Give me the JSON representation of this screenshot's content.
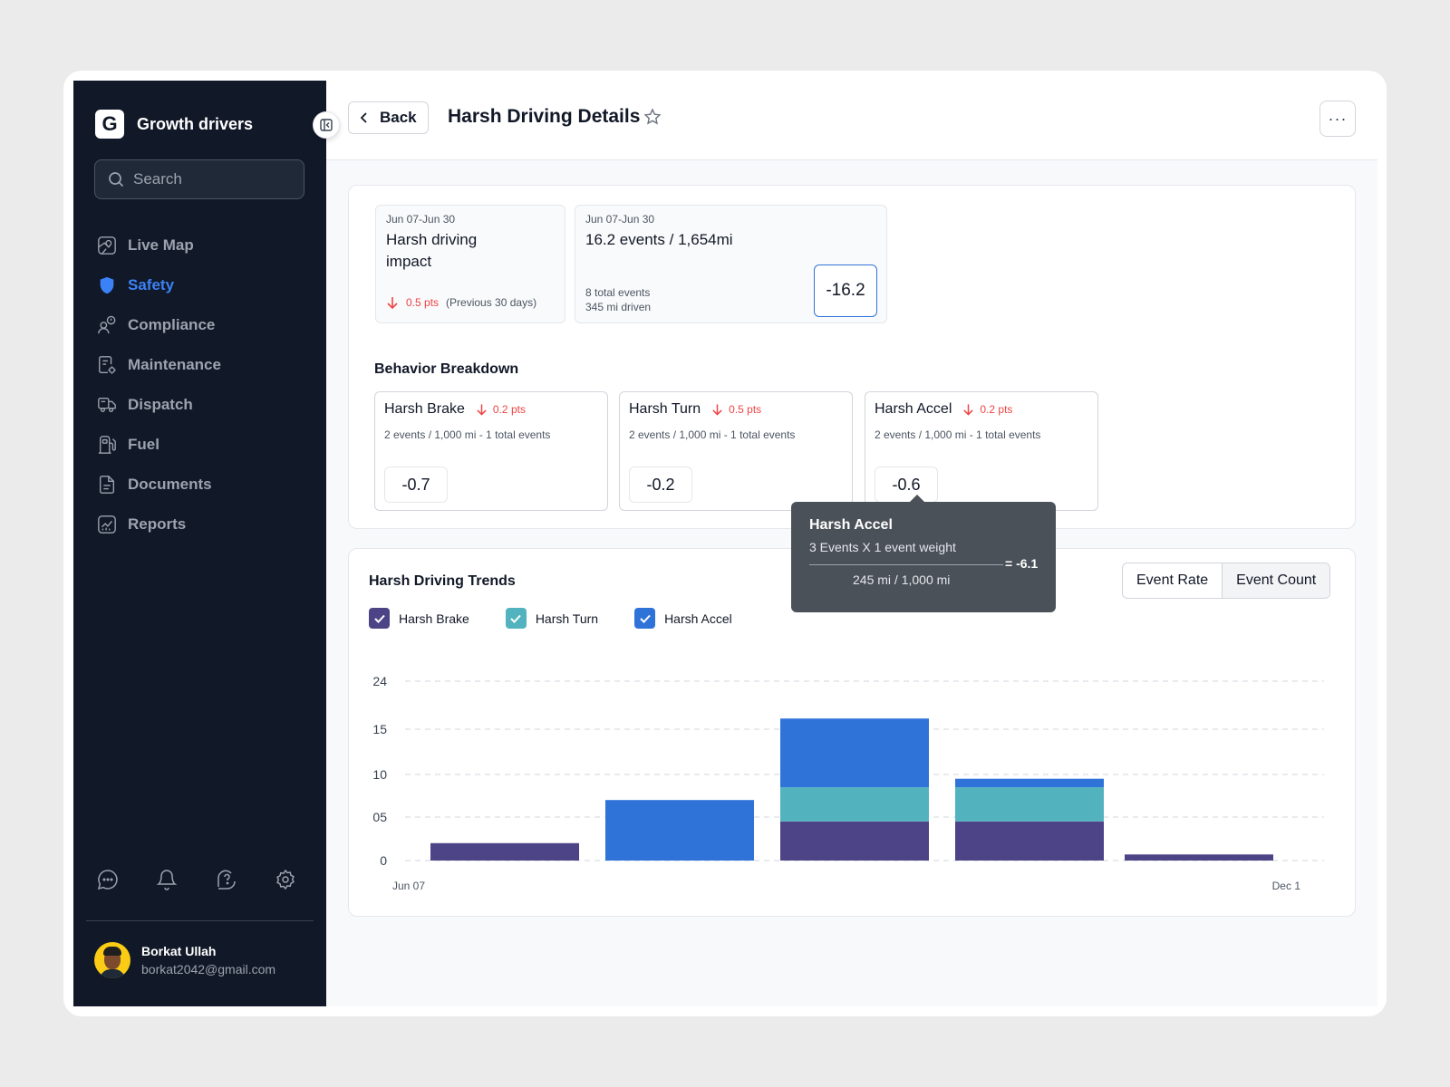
{
  "sidebar": {
    "brand_letter": "G",
    "brand_name": "Growth drivers",
    "search_placeholder": "Search",
    "nav": [
      {
        "label": "Live Map",
        "icon": "map-icon"
      },
      {
        "label": "Safety",
        "icon": "shield-icon",
        "active": true
      },
      {
        "label": "Compliance",
        "icon": "compliance-icon"
      },
      {
        "label": "Maintenance",
        "icon": "maintenance-icon"
      },
      {
        "label": "Dispatch",
        "icon": "truck-icon"
      },
      {
        "label": "Fuel",
        "icon": "fuel-icon"
      },
      {
        "label": "Documents",
        "icon": "document-icon"
      },
      {
        "label": "Reports",
        "icon": "reports-icon"
      }
    ],
    "bottom_icons": [
      "chat-icon",
      "bell-icon",
      "help-icon",
      "settings-icon"
    ],
    "user": {
      "name": "Borkat Ullah",
      "email": "borkat2042@gmail.com"
    }
  },
  "header": {
    "back_label": "Back",
    "title": "Harsh Driving Details",
    "more_label": "···"
  },
  "kpis": {
    "impact": {
      "date": "Jun 07-Jun 30",
      "title": "Harsh driving impact",
      "change": "0.5 pts",
      "change_note": "(Previous 30 days)"
    },
    "events": {
      "date": "Jun 07-Jun 30",
      "title": "16.2 events / 1,654mi",
      "total_events": "8 total events",
      "miles_driven": "345 mi driven",
      "value": "-16.2"
    }
  },
  "breakdown": {
    "title": "Behavior Breakdown",
    "cards": [
      {
        "name": "Harsh Brake",
        "pts": "0.2 pts",
        "sub": "2 events / 1,000 mi -  1 total events",
        "value": "-0.7"
      },
      {
        "name": "Harsh Turn",
        "pts": "0.5 pts",
        "sub": "2 events / 1,000 mi -  1 total events",
        "value": "-0.2"
      },
      {
        "name": "Harsh Accel",
        "pts": "0.2 pts",
        "sub": "2 events / 1,000 mi -  1 total events",
        "value": "-0.6"
      }
    ]
  },
  "tooltip": {
    "title": "Harsh Accel",
    "line1": "3 Events X 1 event weight",
    "result": "= -6.1",
    "line2": "245 mi / 1,000 mi"
  },
  "trends": {
    "title": "Harsh Driving Trends",
    "toggle": {
      "rate": "Event Rate",
      "count": "Event Count",
      "selected": "Event Count"
    },
    "legend": [
      {
        "name": "Harsh Brake",
        "color": "#4c4486"
      },
      {
        "name": "Harsh Turn",
        "color": "#52b3be"
      },
      {
        "name": "Harsh Accel",
        "color": "#2f73d9"
      }
    ]
  },
  "chart_data": {
    "type": "bar",
    "stacked": true,
    "title": "Harsh Driving Trends",
    "xlabel": "",
    "ylabel": "",
    "y_ticks": [
      "0",
      "05",
      "10",
      "15",
      "24"
    ],
    "x_labels": [
      "Jun 07",
      "Dec 1"
    ],
    "series": [
      {
        "name": "Harsh Brake",
        "color": "#4c4486",
        "values": [
          2,
          0,
          4.5,
          4.5,
          0.7
        ]
      },
      {
        "name": "Harsh Turn",
        "color": "#52b3be",
        "values": [
          0,
          0,
          4,
          4,
          0
        ]
      },
      {
        "name": "Harsh Accel",
        "color": "#2f73d9",
        "values": [
          0,
          7,
          8.5,
          1,
          0
        ]
      }
    ],
    "grid": true
  }
}
